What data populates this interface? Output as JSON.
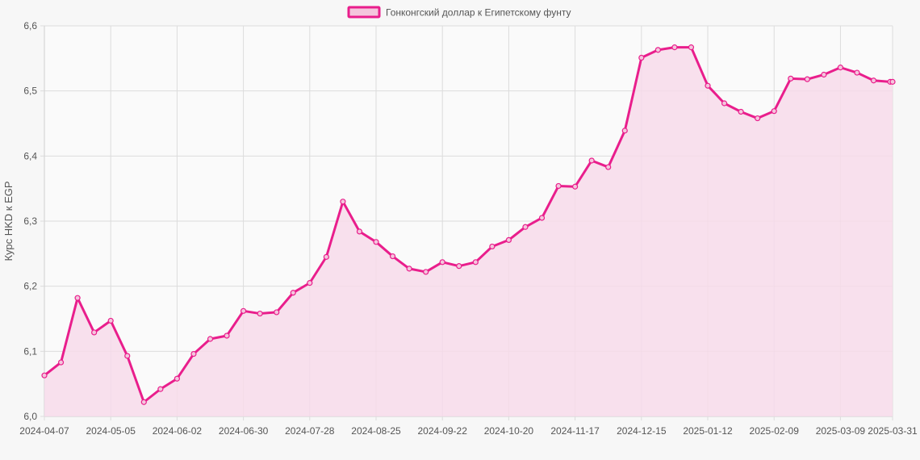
{
  "chart_data": {
    "type": "line",
    "legend": {
      "label": "Гонконгский доллар к Египетскому фунту",
      "position": "top"
    },
    "ylabel": "Курс HKD к EGP",
    "xlabel": "",
    "ylim": [
      6.0,
      6.6
    ],
    "grid": true,
    "colors": {
      "line": "#e91e8c",
      "fill": "#f7dbea",
      "grid": "#dcdcdc",
      "legend_fill": "#f4c6dd"
    },
    "x_tick_labels": [
      "2024-04-07",
      "2024-05-05",
      "2024-06-02",
      "2024-06-30",
      "2024-07-28",
      "2024-08-25",
      "2024-09-22",
      "2024-10-20",
      "2024-11-17",
      "2024-12-15",
      "2025-01-12",
      "2025-02-09",
      "2025-03-09",
      "2025-03-31"
    ],
    "y_tick_labels": [
      "6,0",
      "6,1",
      "6,2",
      "6,3",
      "6,4",
      "6,5",
      "6,6"
    ],
    "series": [
      {
        "name": "Гонконгский доллар к Египетскому фунту",
        "x": [
          "2024-04-07",
          "2024-04-14",
          "2024-04-21",
          "2024-04-28",
          "2024-05-05",
          "2024-05-12",
          "2024-05-19",
          "2024-05-26",
          "2024-06-02",
          "2024-06-09",
          "2024-06-16",
          "2024-06-23",
          "2024-06-30",
          "2024-07-07",
          "2024-07-14",
          "2024-07-21",
          "2024-07-28",
          "2024-08-04",
          "2024-08-11",
          "2024-08-18",
          "2024-08-25",
          "2024-09-01",
          "2024-09-08",
          "2024-09-15",
          "2024-09-22",
          "2024-09-29",
          "2024-10-06",
          "2024-10-13",
          "2024-10-20",
          "2024-10-27",
          "2024-11-03",
          "2024-11-10",
          "2024-11-17",
          "2024-11-24",
          "2024-12-01",
          "2024-12-08",
          "2024-12-15",
          "2024-12-22",
          "2024-12-29",
          "2025-01-05",
          "2025-01-12",
          "2025-01-19",
          "2025-01-26",
          "2025-02-02",
          "2025-02-09",
          "2025-02-16",
          "2025-02-23",
          "2025-03-02",
          "2025-03-09",
          "2025-03-16",
          "2025-03-23",
          "2025-03-30",
          "2025-03-31"
        ],
        "values": [
          6.063,
          6.083,
          6.182,
          6.129,
          6.147,
          6.093,
          6.022,
          6.042,
          6.058,
          6.096,
          6.119,
          6.124,
          6.162,
          6.158,
          6.16,
          6.19,
          6.205,
          6.245,
          6.33,
          6.284,
          6.268,
          6.246,
          6.227,
          6.222,
          6.237,
          6.231,
          6.237,
          6.261,
          6.271,
          6.291,
          6.305,
          6.354,
          6.353,
          6.393,
          6.383,
          6.439,
          6.551,
          6.563,
          6.567,
          6.567,
          6.508,
          6.481,
          6.468,
          6.458,
          6.469,
          6.519,
          6.518,
          6.525,
          6.536,
          6.528,
          6.516,
          6.514,
          6.514
        ]
      }
    ]
  }
}
